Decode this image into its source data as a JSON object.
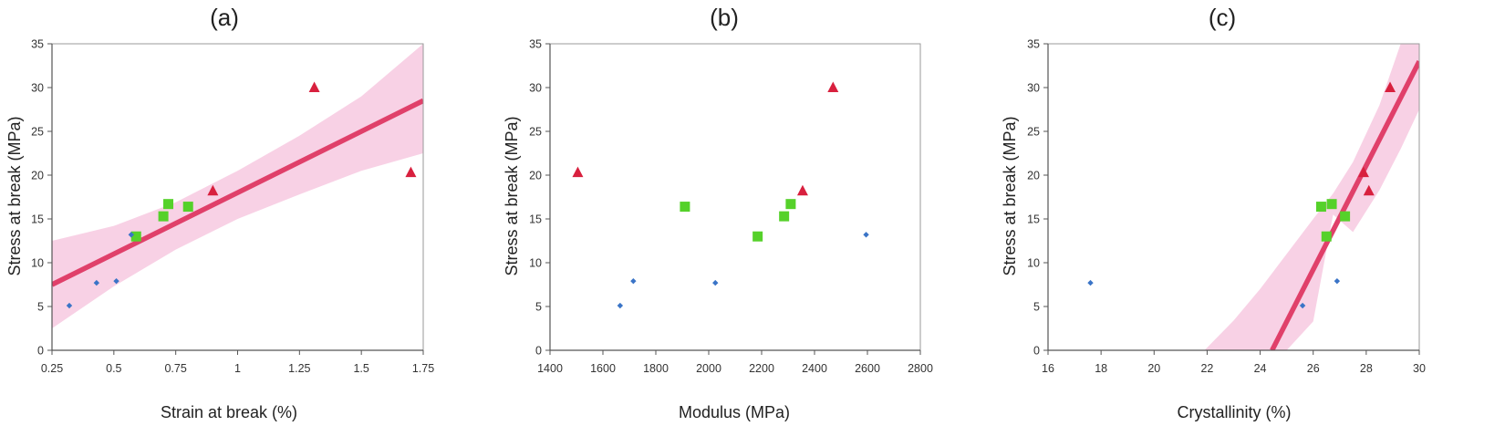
{
  "colors": {
    "fit_line": "#e0406a",
    "ci_band": "#f7c9e0",
    "triangle": "#d8203e",
    "square": "#55d12a",
    "diamond": "#3a74c7"
  },
  "chart_data": [
    {
      "type": "scatter",
      "title": "(a)",
      "xlabel": "Strain at break (%)",
      "ylabel": "Stress at break (MPa)",
      "xlim": [
        0.25,
        1.75
      ],
      "ylim": [
        0,
        35
      ],
      "xticks": [
        0.25,
        0.5,
        0.75,
        1,
        1.25,
        1.5,
        1.75
      ],
      "xtick_labels": [
        "0.25",
        "0.5",
        "0.75",
        "1",
        "1.25",
        "1.5",
        "1.75"
      ],
      "yticks": [
        0,
        5,
        10,
        15,
        20,
        25,
        30,
        35
      ],
      "ytick_labels": [
        "0",
        "5",
        "10",
        "15",
        "20",
        "25",
        "30",
        "35"
      ],
      "series": [
        {
          "marker": "triangle",
          "points": [
            [
              1.31,
              30
            ],
            [
              1.7,
              20.3
            ],
            [
              0.9,
              18.2
            ]
          ]
        },
        {
          "marker": "square",
          "points": [
            [
              0.72,
              16.7
            ],
            [
              0.8,
              16.4
            ],
            [
              0.7,
              15.3
            ],
            [
              0.59,
              13
            ]
          ]
        },
        {
          "marker": "diamond",
          "points": [
            [
              0.57,
              13.2
            ],
            [
              0.51,
              7.9
            ],
            [
              0.43,
              7.7
            ],
            [
              0.32,
              5.1
            ]
          ]
        }
      ],
      "fit": {
        "x": [
          0.25,
          1.75
        ],
        "y": [
          7.5,
          28.5
        ]
      },
      "band": {
        "x": [
          0.25,
          0.5,
          0.75,
          1.0,
          1.25,
          1.5,
          1.75
        ],
        "upper": [
          12.5,
          14.2,
          16.9,
          20.5,
          24.5,
          29.0,
          35.0
        ],
        "lower": [
          2.5,
          7.3,
          11.5,
          15.0,
          17.8,
          20.5,
          22.5
        ]
      }
    },
    {
      "type": "scatter",
      "title": "(b)",
      "xlabel": "Modulus (MPa)",
      "ylabel": "Stress at break (MPa)",
      "xlim": [
        1400,
        2800
      ],
      "ylim": [
        0,
        35
      ],
      "xticks": [
        1400,
        1600,
        1800,
        2000,
        2200,
        2400,
        2600,
        2800
      ],
      "xtick_labels": [
        "1400",
        "1600",
        "1800",
        "2000",
        "2200",
        "2400",
        "2600",
        "2800"
      ],
      "yticks": [
        0,
        5,
        10,
        15,
        20,
        25,
        30,
        35
      ],
      "ytick_labels": [
        "0",
        "5",
        "10",
        "15",
        "20",
        "25",
        "30",
        "35"
      ],
      "series": [
        {
          "marker": "triangle",
          "points": [
            [
              2470,
              30
            ],
            [
              1505,
              20.3
            ],
            [
              2355,
              18.2
            ]
          ]
        },
        {
          "marker": "square",
          "points": [
            [
              1910,
              16.4
            ],
            [
              2310,
              16.7
            ],
            [
              2285,
              15.3
            ],
            [
              2185,
              13
            ]
          ]
        },
        {
          "marker": "diamond",
          "points": [
            [
              2595,
              13.2
            ],
            [
              1715,
              7.9
            ],
            [
              2025,
              7.7
            ],
            [
              1665,
              5.1
            ]
          ]
        }
      ]
    },
    {
      "type": "scatter",
      "title": "(c)",
      "xlabel": "Crystallinity (%)",
      "ylabel": "Stress at break (MPa)",
      "xlim": [
        16,
        30
      ],
      "ylim": [
        0,
        35
      ],
      "xticks": [
        16,
        18,
        20,
        22,
        24,
        26,
        28,
        30
      ],
      "xtick_labels": [
        "16",
        "18",
        "20",
        "22",
        "24",
        "26",
        "28",
        "30"
      ],
      "yticks": [
        0,
        5,
        10,
        15,
        20,
        25,
        30,
        35
      ],
      "ytick_labels": [
        "0",
        "5",
        "10",
        "15",
        "20",
        "25",
        "30",
        "35"
      ],
      "series": [
        {
          "marker": "triangle",
          "points": [
            [
              28.9,
              30
            ],
            [
              27.9,
              20.3
            ],
            [
              28.1,
              18.2
            ]
          ]
        },
        {
          "marker": "square",
          "points": [
            [
              26.3,
              16.4
            ],
            [
              26.7,
              16.7
            ],
            [
              27.2,
              15.3
            ],
            [
              26.5,
              13
            ]
          ]
        },
        {
          "marker": "diamond",
          "points": [
            [
              17.6,
              7.7
            ],
            [
              25.6,
              5.1
            ],
            [
              26.9,
              7.9
            ]
          ]
        }
      ],
      "fit": {
        "x": [
          24.45,
          30
        ],
        "y": [
          0,
          33
        ]
      },
      "band": {
        "x": [
          21.9,
          23.0,
          24.0,
          25.0,
          26.0,
          26.75,
          27.5,
          28.5,
          29.3,
          30.0
        ],
        "upper": [
          0,
          3.4,
          7.0,
          11.0,
          15.0,
          17.9,
          21.5,
          28.0,
          35.0,
          35.0
        ],
        "lower": [
          0,
          0,
          0,
          0,
          3.3,
          15.5,
          13.5,
          18.3,
          23.0,
          27.5
        ]
      }
    }
  ]
}
